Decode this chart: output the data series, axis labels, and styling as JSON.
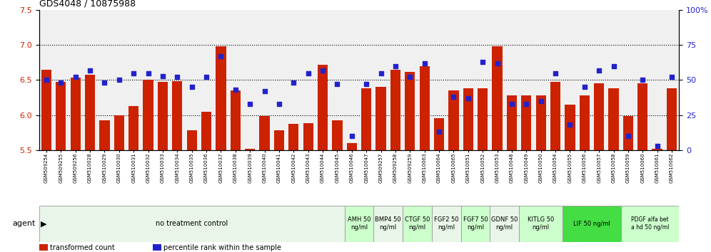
{
  "title": "GDS4048 / 10875988",
  "ylim_left": [
    5.5,
    7.5
  ],
  "ylim_right": [
    0,
    100
  ],
  "yticks_left": [
    5.5,
    6.0,
    6.5,
    7.0,
    7.5
  ],
  "yticks_right": [
    0,
    25,
    50,
    75,
    100
  ],
  "bar_color": "#cc2200",
  "dot_color": "#2222cc",
  "plot_bg_color": "#f0f0f0",
  "samples": [
    "GSM509254",
    "GSM509255",
    "GSM509256",
    "GSM510028",
    "GSM510029",
    "GSM510030",
    "GSM510031",
    "GSM510032",
    "GSM510033",
    "GSM510034",
    "GSM510035",
    "GSM510036",
    "GSM510037",
    "GSM510038",
    "GSM510039",
    "GSM510040",
    "GSM510041",
    "GSM510042",
    "GSM510043",
    "GSM510044",
    "GSM510045",
    "GSM510046",
    "GSM510047",
    "GSM509257",
    "GSM509258",
    "GSM509259",
    "GSM510063",
    "GSM510064",
    "GSM510065",
    "GSM510051",
    "GSM510052",
    "GSM510053",
    "GSM510048",
    "GSM510049",
    "GSM510050",
    "GSM510054",
    "GSM510055",
    "GSM510056",
    "GSM510057",
    "GSM510058",
    "GSM510059",
    "GSM510060",
    "GSM510061",
    "GSM510062"
  ],
  "bar_values": [
    6.65,
    6.47,
    6.53,
    6.58,
    5.92,
    6.0,
    6.13,
    6.5,
    6.47,
    6.48,
    5.78,
    6.05,
    6.98,
    6.35,
    5.52,
    5.98,
    5.78,
    5.87,
    5.88,
    6.72,
    5.92,
    5.6,
    6.38,
    6.4,
    6.65,
    6.62,
    6.7,
    5.95,
    6.35,
    6.38,
    6.38,
    6.98,
    6.28,
    6.28,
    6.28,
    6.47,
    6.15,
    6.28,
    6.45,
    6.38,
    5.98,
    6.45,
    5.52,
    6.38
  ],
  "dot_values": [
    50,
    48,
    52,
    57,
    48,
    50,
    55,
    55,
    53,
    52,
    45,
    52,
    67,
    43,
    33,
    42,
    33,
    48,
    55,
    57,
    47,
    10,
    47,
    55,
    60,
    52,
    62,
    13,
    38,
    37,
    63,
    62,
    33,
    33,
    35,
    55,
    18,
    45,
    57,
    60,
    10,
    50,
    3,
    52
  ],
  "agent_groups": [
    {
      "label": "no treatment control",
      "start": 0,
      "end": 21,
      "color": "#e8f5e8",
      "fontsize": 7
    },
    {
      "label": "AMH 50\nng/ml",
      "start": 21,
      "end": 23,
      "color": "#ccffcc",
      "fontsize": 6
    },
    {
      "label": "BMP4 50\nng/ml",
      "start": 23,
      "end": 25,
      "color": "#e8f5e8",
      "fontsize": 6
    },
    {
      "label": "CTGF 50\nng/ml",
      "start": 25,
      "end": 27,
      "color": "#ccffcc",
      "fontsize": 6
    },
    {
      "label": "FGF2 50\nng/ml",
      "start": 27,
      "end": 29,
      "color": "#e8f5e8",
      "fontsize": 6
    },
    {
      "label": "FGF7 50\nng/ml",
      "start": 29,
      "end": 31,
      "color": "#ccffcc",
      "fontsize": 6
    },
    {
      "label": "GDNF 50\nng/ml",
      "start": 31,
      "end": 33,
      "color": "#e8f5e8",
      "fontsize": 6
    },
    {
      "label": "KITLG 50\nng/ml",
      "start": 33,
      "end": 36,
      "color": "#ccffcc",
      "fontsize": 6
    },
    {
      "label": "LIF 50 ng/ml",
      "start": 36,
      "end": 40,
      "color": "#44dd44",
      "fontsize": 6
    },
    {
      "label": "PDGF alfa bet\na hd 50 ng/ml",
      "start": 40,
      "end": 44,
      "color": "#ccffcc",
      "fontsize": 5.5
    }
  ]
}
